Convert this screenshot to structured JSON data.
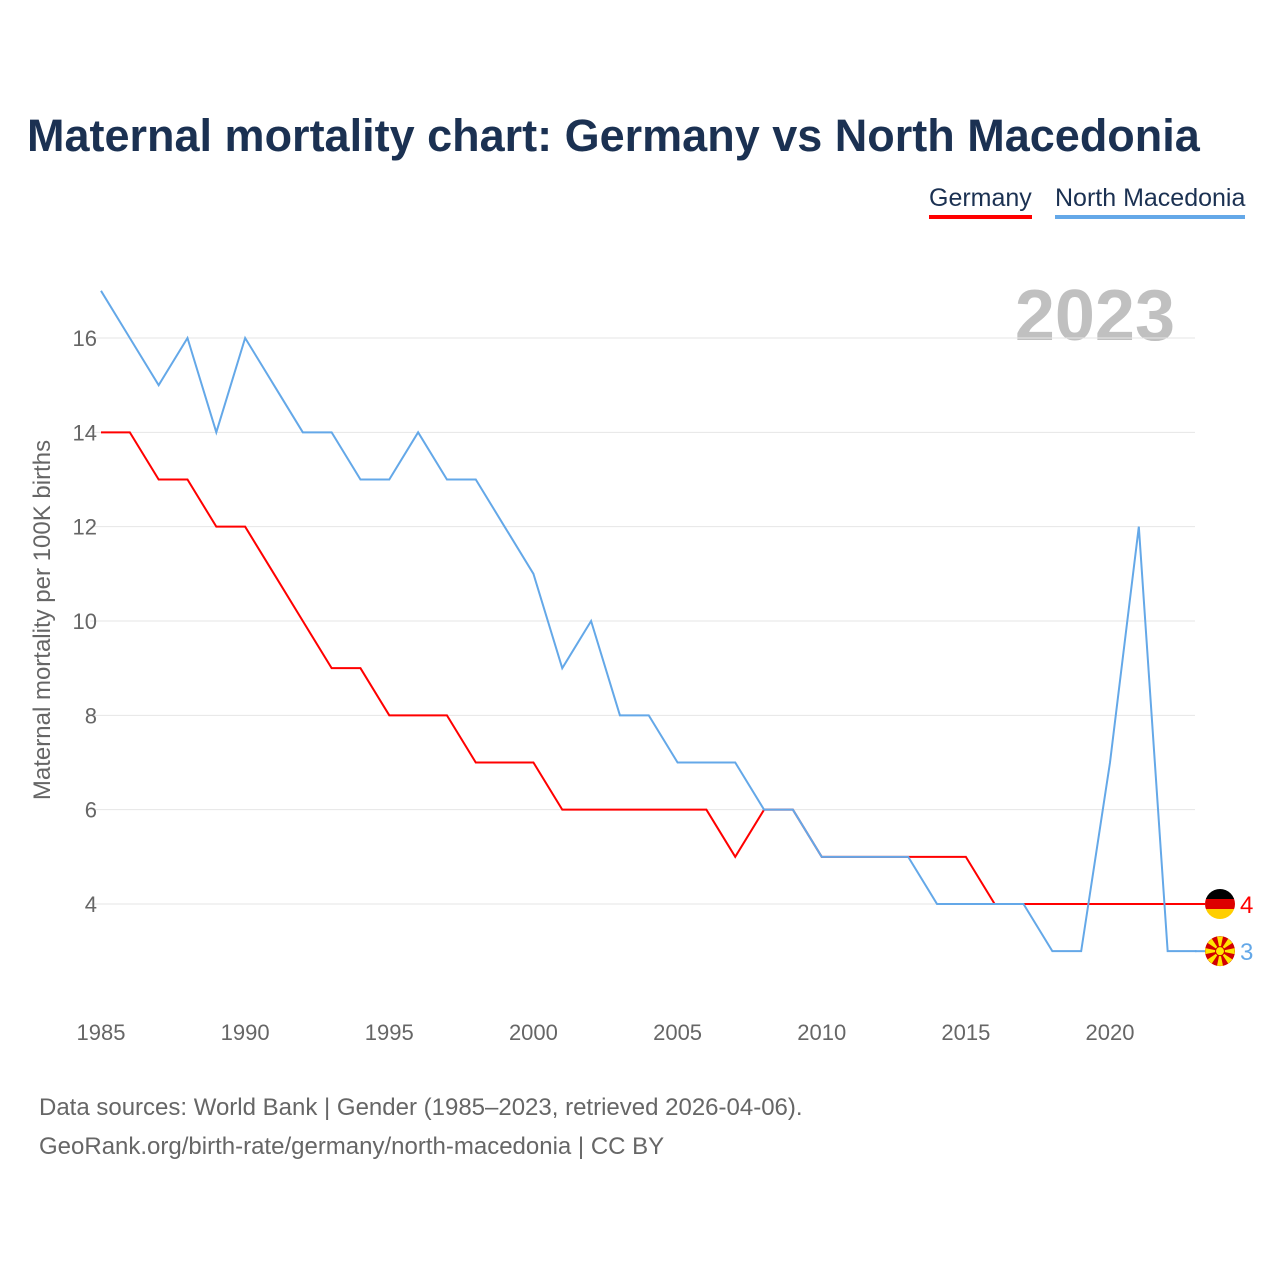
{
  "chart_data": {
    "type": "line",
    "title": "Maternal mortality chart: Germany vs North Macedonia",
    "ylabel": "Maternal mortality per 100K births",
    "xlabel": "",
    "year_label": "2023",
    "x": [
      1985,
      1986,
      1987,
      1988,
      1989,
      1990,
      1991,
      1992,
      1993,
      1994,
      1995,
      1996,
      1997,
      1998,
      1999,
      2000,
      2001,
      2002,
      2003,
      2004,
      2005,
      2006,
      2007,
      2008,
      2009,
      2010,
      2011,
      2012,
      2013,
      2014,
      2015,
      2016,
      2017,
      2018,
      2019,
      2020,
      2021,
      2022,
      2023
    ],
    "series": [
      {
        "name": "Germany",
        "color": "#ff0000",
        "last_label": "4",
        "values": [
          14,
          14,
          13,
          13,
          12,
          12,
          11,
          10,
          9,
          9,
          8,
          8,
          8,
          7,
          7,
          7,
          6,
          6,
          6,
          6,
          6,
          6,
          5,
          6,
          6,
          5,
          5,
          5,
          5,
          5,
          5,
          4,
          4,
          4,
          4,
          4,
          4,
          4,
          4
        ]
      },
      {
        "name": "North Macedonia",
        "color": "#64a8e8",
        "last_label": "3",
        "values": [
          17,
          16,
          15,
          16,
          14,
          16,
          15,
          14,
          14,
          13,
          13,
          14,
          13,
          13,
          12,
          11,
          9,
          10,
          8,
          8,
          7,
          7,
          7,
          6,
          6,
          5,
          5,
          5,
          5,
          4,
          4,
          4,
          4,
          3,
          3,
          7,
          12,
          3,
          3
        ]
      }
    ],
    "xticks": [
      "1985",
      "1990",
      "1995",
      "2000",
      "2005",
      "2010",
      "2015",
      "2020"
    ],
    "yticks": [
      "4",
      "6",
      "8",
      "10",
      "12",
      "14",
      "16"
    ],
    "xlim": [
      1985,
      2023
    ],
    "ylim": [
      2,
      17
    ],
    "grid": true,
    "legend": "top-right"
  },
  "footer": {
    "line1": "Data sources: World Bank | Gender (1985–2023, retrieved 2026-04-06).",
    "line2": "GeoRank.org/birth-rate/germany/north-macedonia | CC BY"
  }
}
